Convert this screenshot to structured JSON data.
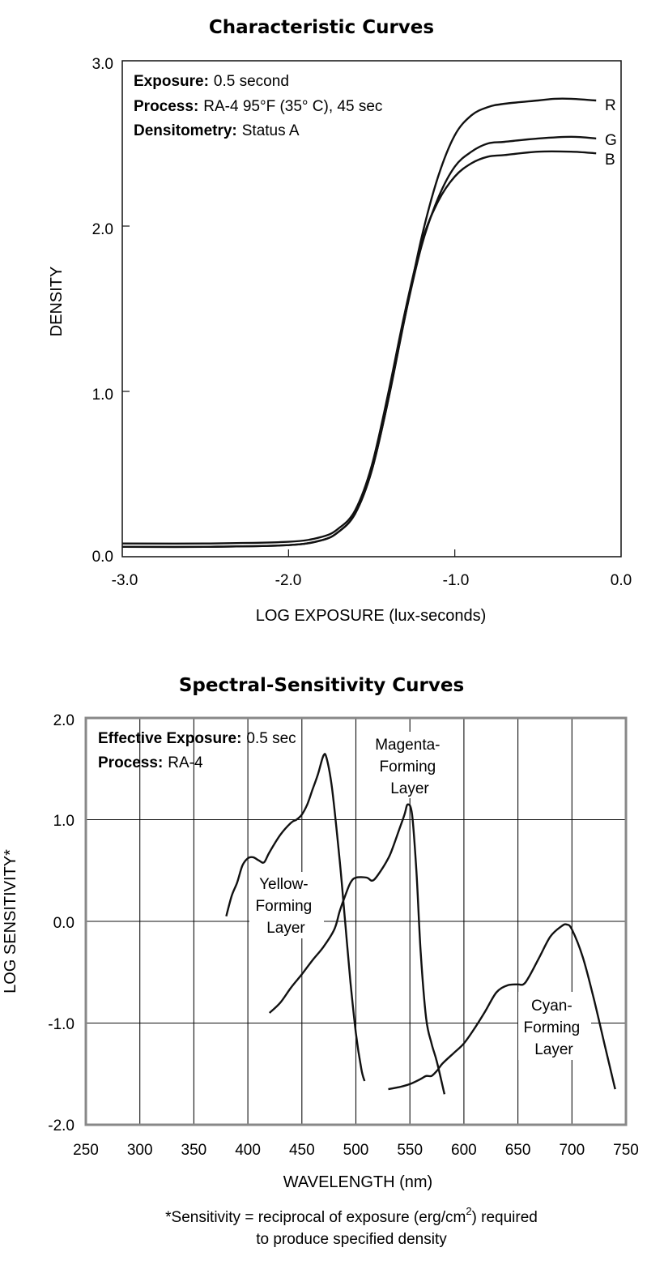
{
  "chart_data": [
    {
      "type": "line",
      "title": "Characteristic Curves",
      "xlabel": "LOG EXPOSURE (lux-seconds)",
      "ylabel": "DENSITY",
      "xlim": [
        -3.0,
        0.0
      ],
      "ylim": [
        0.0,
        3.0
      ],
      "x_ticks": [
        "-3.0",
        "-2.0",
        "-1.0",
        "0.0"
      ],
      "y_ticks": [
        "0.0",
        "1.0",
        "2.0",
        "3.0"
      ],
      "grid": false,
      "notes": [
        {
          "label": "Exposure:",
          "value": "0.5 second"
        },
        {
          "label": "Process:",
          "value": "RA-4 95°F (35° C), 45 sec"
        },
        {
          "label": "Densitometry:",
          "value": "Status A"
        }
      ],
      "series": [
        {
          "name": "R",
          "points": [
            [
              -3.0,
              0.06
            ],
            [
              -2.5,
              0.06
            ],
            [
              -2.0,
              0.07
            ],
            [
              -1.8,
              0.1
            ],
            [
              -1.7,
              0.15
            ],
            [
              -1.6,
              0.26
            ],
            [
              -1.5,
              0.52
            ],
            [
              -1.4,
              0.95
            ],
            [
              -1.3,
              1.45
            ],
            [
              -1.2,
              1.93
            ],
            [
              -1.1,
              2.3
            ],
            [
              -1.0,
              2.55
            ],
            [
              -0.9,
              2.67
            ],
            [
              -0.8,
              2.72
            ],
            [
              -0.7,
              2.74
            ],
            [
              -0.5,
              2.76
            ],
            [
              -0.4,
              2.77
            ],
            [
              -0.3,
              2.77
            ],
            [
              -0.15,
              2.76
            ]
          ]
        },
        {
          "name": "G",
          "points": [
            [
              -3.0,
              0.06
            ],
            [
              -2.5,
              0.06
            ],
            [
              -2.0,
              0.07
            ],
            [
              -1.8,
              0.1
            ],
            [
              -1.7,
              0.15
            ],
            [
              -1.6,
              0.26
            ],
            [
              -1.5,
              0.52
            ],
            [
              -1.4,
              0.95
            ],
            [
              -1.3,
              1.45
            ],
            [
              -1.2,
              1.88
            ],
            [
              -1.1,
              2.17
            ],
            [
              -1.0,
              2.36
            ],
            [
              -0.9,
              2.45
            ],
            [
              -0.8,
              2.5
            ],
            [
              -0.7,
              2.51
            ],
            [
              -0.5,
              2.53
            ],
            [
              -0.3,
              2.54
            ],
            [
              -0.15,
              2.53
            ]
          ]
        },
        {
          "name": "B",
          "points": [
            [
              -3.0,
              0.08
            ],
            [
              -2.5,
              0.08
            ],
            [
              -2.0,
              0.09
            ],
            [
              -1.8,
              0.12
            ],
            [
              -1.7,
              0.17
            ],
            [
              -1.6,
              0.28
            ],
            [
              -1.5,
              0.55
            ],
            [
              -1.4,
              0.99
            ],
            [
              -1.3,
              1.48
            ],
            [
              -1.2,
              1.9
            ],
            [
              -1.1,
              2.15
            ],
            [
              -1.0,
              2.3
            ],
            [
              -0.9,
              2.38
            ],
            [
              -0.8,
              2.42
            ],
            [
              -0.7,
              2.43
            ],
            [
              -0.5,
              2.45
            ],
            [
              -0.3,
              2.45
            ],
            [
              -0.15,
              2.44
            ]
          ]
        }
      ]
    },
    {
      "type": "line",
      "title": "Spectral-Sensitivity Curves",
      "xlabel": "WAVELENGTH (nm)",
      "ylabel": "LOG SENSITIVITY*",
      "xlim": [
        250,
        750
      ],
      "ylim": [
        -2.0,
        2.0
      ],
      "x_ticks": [
        "250",
        "300",
        "350",
        "400",
        "450",
        "500",
        "550",
        "600",
        "650",
        "700",
        "750"
      ],
      "y_ticks": [
        "2.0",
        "1.0",
        "0.0",
        "-1.0",
        "-2.0"
      ],
      "grid": true,
      "notes": [
        {
          "label": "Effective Exposure:",
          "value": "0.5 sec"
        },
        {
          "label": "Process:",
          "value": "RA-4"
        }
      ],
      "footnote": {
        "line1_pre": "*Sensitivity = reciprocal of exposure (erg/cm",
        "line1_sup": "2",
        "line1_post": ") required",
        "line2": "to produce specified density"
      },
      "series": [
        {
          "name": "Yellow-Forming Layer",
          "label_lines": [
            "Yellow-",
            "Forming",
            "Layer"
          ],
          "points": [
            [
              380,
              0.05
            ],
            [
              385,
              0.25
            ],
            [
              390,
              0.38
            ],
            [
              395,
              0.55
            ],
            [
              400,
              0.62
            ],
            [
              405,
              0.63
            ],
            [
              410,
              0.6
            ],
            [
              415,
              0.58
            ],
            [
              420,
              0.68
            ],
            [
              430,
              0.85
            ],
            [
              440,
              0.97
            ],
            [
              445,
              1.0
            ],
            [
              450,
              1.05
            ],
            [
              455,
              1.15
            ],
            [
              460,
              1.3
            ],
            [
              465,
              1.45
            ],
            [
              470,
              1.63
            ],
            [
              473,
              1.6
            ],
            [
              478,
              1.3
            ],
            [
              485,
              0.6
            ],
            [
              490,
              0.0
            ],
            [
              495,
              -0.6
            ],
            [
              500,
              -1.1
            ],
            [
              505,
              -1.45
            ],
            [
              508,
              -1.57
            ]
          ]
        },
        {
          "name": "Magenta-Forming Layer",
          "label_lines": [
            "Magenta-",
            "Forming",
            "Layer"
          ],
          "points": [
            [
              420,
              -0.9
            ],
            [
              430,
              -0.8
            ],
            [
              440,
              -0.65
            ],
            [
              450,
              -0.52
            ],
            [
              460,
              -0.38
            ],
            [
              470,
              -0.25
            ],
            [
              480,
              -0.08
            ],
            [
              485,
              0.1
            ],
            [
              490,
              0.25
            ],
            [
              495,
              0.38
            ],
            [
              500,
              0.43
            ],
            [
              510,
              0.43
            ],
            [
              515,
              0.4
            ],
            [
              520,
              0.45
            ],
            [
              530,
              0.62
            ],
            [
              535,
              0.75
            ],
            [
              540,
              0.9
            ],
            [
              545,
              1.05
            ],
            [
              548,
              1.15
            ],
            [
              552,
              1.05
            ],
            [
              556,
              0.5
            ],
            [
              560,
              -0.3
            ],
            [
              565,
              -0.95
            ],
            [
              570,
              -1.2
            ],
            [
              575,
              -1.38
            ],
            [
              582,
              -1.7
            ]
          ]
        },
        {
          "name": "Cyan-Forming Layer",
          "label_lines": [
            "Cyan-",
            "Forming",
            "Layer"
          ],
          "points": [
            [
              530,
              -1.65
            ],
            [
              540,
              -1.63
            ],
            [
              550,
              -1.6
            ],
            [
              560,
              -1.55
            ],
            [
              565,
              -1.52
            ],
            [
              570,
              -1.52
            ],
            [
              575,
              -1.47
            ],
            [
              580,
              -1.4
            ],
            [
              590,
              -1.3
            ],
            [
              600,
              -1.2
            ],
            [
              610,
              -1.05
            ],
            [
              620,
              -0.88
            ],
            [
              630,
              -0.7
            ],
            [
              640,
              -0.63
            ],
            [
              650,
              -0.62
            ],
            [
              655,
              -0.62
            ],
            [
              660,
              -0.55
            ],
            [
              670,
              -0.35
            ],
            [
              680,
              -0.15
            ],
            [
              690,
              -0.05
            ],
            [
              695,
              -0.03
            ],
            [
              700,
              -0.08
            ],
            [
              710,
              -0.35
            ],
            [
              720,
              -0.75
            ],
            [
              730,
              -1.2
            ],
            [
              740,
              -1.65
            ]
          ]
        }
      ]
    }
  ]
}
